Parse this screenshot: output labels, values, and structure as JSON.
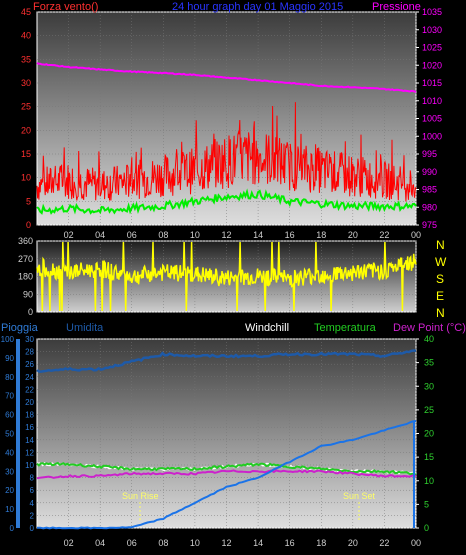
{
  "title": "24 hour graph day  01 Maggio 2015",
  "colors": {
    "wind": "#ff0000",
    "wind_avg": "#00ee00",
    "pressure": "#ff00ff",
    "direction": "#ffff00",
    "rain": "#1a73e8",
    "humidity": "#1e5aa8",
    "temperature": "#22cc22",
    "dewpoint": "#cc22cc",
    "windchill": "#ffffff",
    "axis_text": "#cfcfcf",
    "rain_axis": "#2f7bd6",
    "green_axis": "#2fd12f",
    "left_red": "#ff3030"
  },
  "panel1": {
    "left_label": "Forza vento()",
    "right_label": "Pressione",
    "left_ticks": [
      "0",
      "5",
      "10",
      "15",
      "20",
      "25",
      "30",
      "35",
      "40",
      "45"
    ],
    "right_ticks": [
      "975",
      "980",
      "985",
      "990",
      "995",
      "1000",
      "1005",
      "1010",
      "1015",
      "1020",
      "1025",
      "1030",
      "1035"
    ],
    "x_ticks": [
      "02",
      "04",
      "06",
      "08",
      "10",
      "12",
      "14",
      "16",
      "18",
      "20",
      "22",
      "00"
    ]
  },
  "panel2": {
    "left_ticks": [
      "0",
      "90",
      "180",
      "270",
      "360"
    ],
    "compass": [
      "N",
      "W",
      "S",
      "E",
      "N"
    ]
  },
  "panel3": {
    "labels": {
      "pioggia": "Pioggia",
      "umidita": "Umidita",
      "windchill": "Windchill",
      "temperatura": "Temperatura",
      "dewpoint": "Dew Point (°C)"
    },
    "humidity_ticks": [
      "0",
      "10",
      "20",
      "30",
      "40",
      "50",
      "60",
      "70",
      "80",
      "90",
      "100"
    ],
    "rain_ticks": [
      "0",
      "2",
      "4",
      "6",
      "8",
      "10",
      "12",
      "14",
      "16",
      "18",
      "20",
      "22",
      "24",
      "26",
      "28",
      "30"
    ],
    "temp_ticks": [
      "0",
      "5",
      "10",
      "15",
      "20",
      "25",
      "30",
      "35",
      "40"
    ],
    "x_ticks": [
      "02",
      "04",
      "06",
      "08",
      "10",
      "12",
      "14",
      "16",
      "18",
      "20",
      "22",
      "00"
    ],
    "sunrise": "Sun Rise",
    "sunset": "Sun Set"
  },
  "chart_data": [
    {
      "type": "line",
      "title": "24 hour graph day  01 Maggio 2015",
      "x": [
        0,
        2,
        4,
        6,
        8,
        10,
        12,
        14,
        16,
        18,
        20,
        22,
        24
      ],
      "x_tick_labels": [
        "02",
        "04",
        "06",
        "08",
        "10",
        "12",
        "14",
        "16",
        "18",
        "20",
        "22",
        "00"
      ],
      "series": [
        {
          "name": "Forza vento()",
          "axis": "left",
          "values": [
            8,
            9,
            8,
            9,
            10,
            11,
            13,
            14,
            12,
            11,
            10,
            9,
            8
          ]
        },
        {
          "name": "Forza vento() avg",
          "axis": "left",
          "values": [
            3,
            3.5,
            3,
            3.5,
            4,
            5,
            6,
            6.5,
            5,
            4.5,
            4,
            4,
            4
          ]
        },
        {
          "name": "Pressione",
          "axis": "right",
          "values": [
            1020.5,
            1019.5,
            1018.8,
            1018.2,
            1017.8,
            1017.3,
            1016.5,
            1015.8,
            1015,
            1014.2,
            1013.8,
            1013.3,
            1012.6
          ]
        }
      ],
      "ylim_left": [
        0,
        45
      ],
      "ylim_right": [
        975,
        1035
      ],
      "ylabel": "Forza vento()",
      "ylabel_right": "Pressione"
    },
    {
      "type": "line",
      "x": [
        0,
        2,
        4,
        6,
        8,
        10,
        12,
        14,
        16,
        18,
        20,
        22,
        24
      ],
      "series": [
        {
          "name": "wind direction",
          "values": [
            230,
            200,
            220,
            180,
            200,
            190,
            170,
            180,
            170,
            190,
            200,
            210,
            260
          ]
        }
      ],
      "ylim": [
        0,
        360
      ],
      "y_tick_labels": [
        "0",
        "90",
        "180",
        "270",
        "360"
      ]
    },
    {
      "type": "line",
      "x": [
        0,
        2,
        4,
        6,
        8,
        10,
        12,
        14,
        16,
        18,
        20,
        22,
        24
      ],
      "x_tick_labels": [
        "02",
        "04",
        "06",
        "08",
        "10",
        "12",
        "14",
        "16",
        "18",
        "20",
        "22",
        "00"
      ],
      "series": [
        {
          "name": "Pioggia",
          "axis": "rain",
          "values": [
            0,
            0,
            0,
            0.1,
            1.5,
            4,
            6.5,
            8,
            10.5,
            13,
            14,
            15.5,
            17
          ]
        },
        {
          "name": "Umidita",
          "axis": "humidity",
          "values": [
            83,
            84,
            84,
            88,
            92,
            91,
            91,
            91,
            92,
            92,
            92,
            91,
            94
          ]
        },
        {
          "name": "Temperatura",
          "axis": "temperature",
          "values": [
            13.5,
            13.5,
            13,
            12.5,
            12.5,
            12.5,
            13,
            13.5,
            13,
            12.5,
            12,
            12,
            11.5
          ]
        },
        {
          "name": "Dew Point (°C)",
          "axis": "temperature",
          "values": [
            10.5,
            11,
            11,
            11.5,
            11.5,
            11.5,
            12,
            12,
            12,
            12,
            11.5,
            11,
            11
          ]
        }
      ],
      "ylim_humidity": [
        0,
        100
      ],
      "ylim_rain": [
        0,
        30
      ],
      "ylim_temperature": [
        0,
        40
      ],
      "annotations": [
        "Sun Rise",
        "Sun Set"
      ]
    }
  ]
}
